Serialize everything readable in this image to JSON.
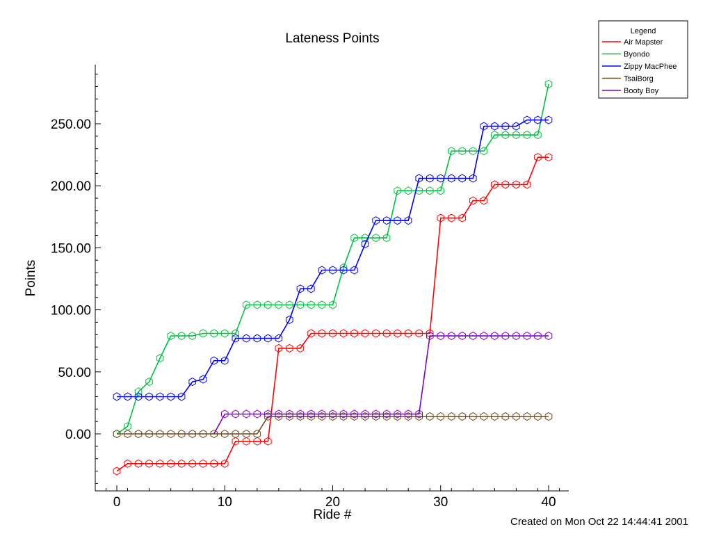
{
  "chart_data": {
    "type": "line",
    "title": "Lateness Points",
    "xlabel": "Ride #",
    "ylabel": "Points",
    "xlim": [
      -2,
      42
    ],
    "ylim": [
      -45,
      297
    ],
    "xticks": [
      0,
      10,
      20,
      30,
      40
    ],
    "yticks": [
      0,
      50,
      100,
      150,
      200,
      250
    ],
    "ytick_labels": [
      "0.00",
      "50.00",
      "100.00",
      "150.00",
      "200.00",
      "250.00"
    ],
    "grid": false,
    "legend_title": "Legend",
    "legend_position": "top-right",
    "x": [
      0,
      1,
      2,
      3,
      4,
      5,
      6,
      7,
      8,
      9,
      10,
      11,
      12,
      13,
      14,
      15,
      16,
      17,
      18,
      19,
      20,
      21,
      22,
      23,
      24,
      25,
      26,
      27,
      28,
      29,
      30,
      31,
      32,
      33,
      34,
      35,
      36,
      37,
      38,
      39,
      40
    ],
    "series": [
      {
        "name": "Air Mapster",
        "color": "#ff0000",
        "values": [
          -30,
          -24,
          -24,
          -24,
          -24,
          -24,
          -24,
          -24,
          -24,
          -24,
          -24,
          -6,
          -6,
          -6,
          -6,
          69,
          69,
          69,
          81,
          81,
          81,
          81,
          81,
          81,
          81,
          81,
          81,
          81,
          81,
          81,
          174,
          174,
          174,
          188,
          188,
          201,
          201,
          201,
          201,
          223,
          223
        ]
      },
      {
        "name": "Byondo",
        "color": "#00c040",
        "values": [
          0,
          6,
          34,
          42,
          61,
          79,
          79,
          79,
          81,
          81,
          81,
          81,
          104,
          104,
          104,
          104,
          104,
          104,
          104,
          104,
          104,
          134,
          158,
          158,
          158,
          158,
          196,
          196,
          196,
          196,
          196,
          228,
          228,
          228,
          228,
          241,
          241,
          241,
          241,
          241,
          282
        ]
      },
      {
        "name": "Zippy MacPhee",
        "color": "#0000ff",
        "values": [
          30,
          30,
          30,
          30,
          30,
          30,
          30,
          42,
          44,
          59,
          59,
          77,
          77,
          77,
          77,
          77,
          92,
          117,
          117,
          132,
          132,
          132,
          132,
          153,
          172,
          172,
          172,
          172,
          206,
          206,
          206,
          206,
          206,
          206,
          248,
          248,
          248,
          248,
          253,
          253,
          253
        ]
      },
      {
        "name": "TsaiBorg",
        "color": "#6b4a1e",
        "values": [
          0,
          0,
          0,
          0,
          0,
          0,
          0,
          0,
          0,
          0,
          0,
          0,
          0,
          0,
          14,
          14,
          14,
          14,
          14,
          14,
          14,
          14,
          14,
          14,
          14,
          14,
          14,
          14,
          14,
          14,
          14,
          14,
          14,
          14,
          14,
          14,
          14,
          14,
          14,
          14,
          14
        ]
      },
      {
        "name": "Booty Boy",
        "color": "#8000c0",
        "values": [
          null,
          null,
          null,
          null,
          null,
          null,
          null,
          null,
          null,
          0,
          16,
          16,
          16,
          16,
          16,
          16,
          16,
          16,
          16,
          16,
          16,
          16,
          16,
          16,
          16,
          16,
          16,
          16,
          16,
          79,
          79,
          79,
          79,
          79,
          79,
          79,
          79,
          79,
          79,
          79,
          79
        ]
      }
    ],
    "footer": "Created on Mon Oct 22 14:44:41 2001"
  }
}
